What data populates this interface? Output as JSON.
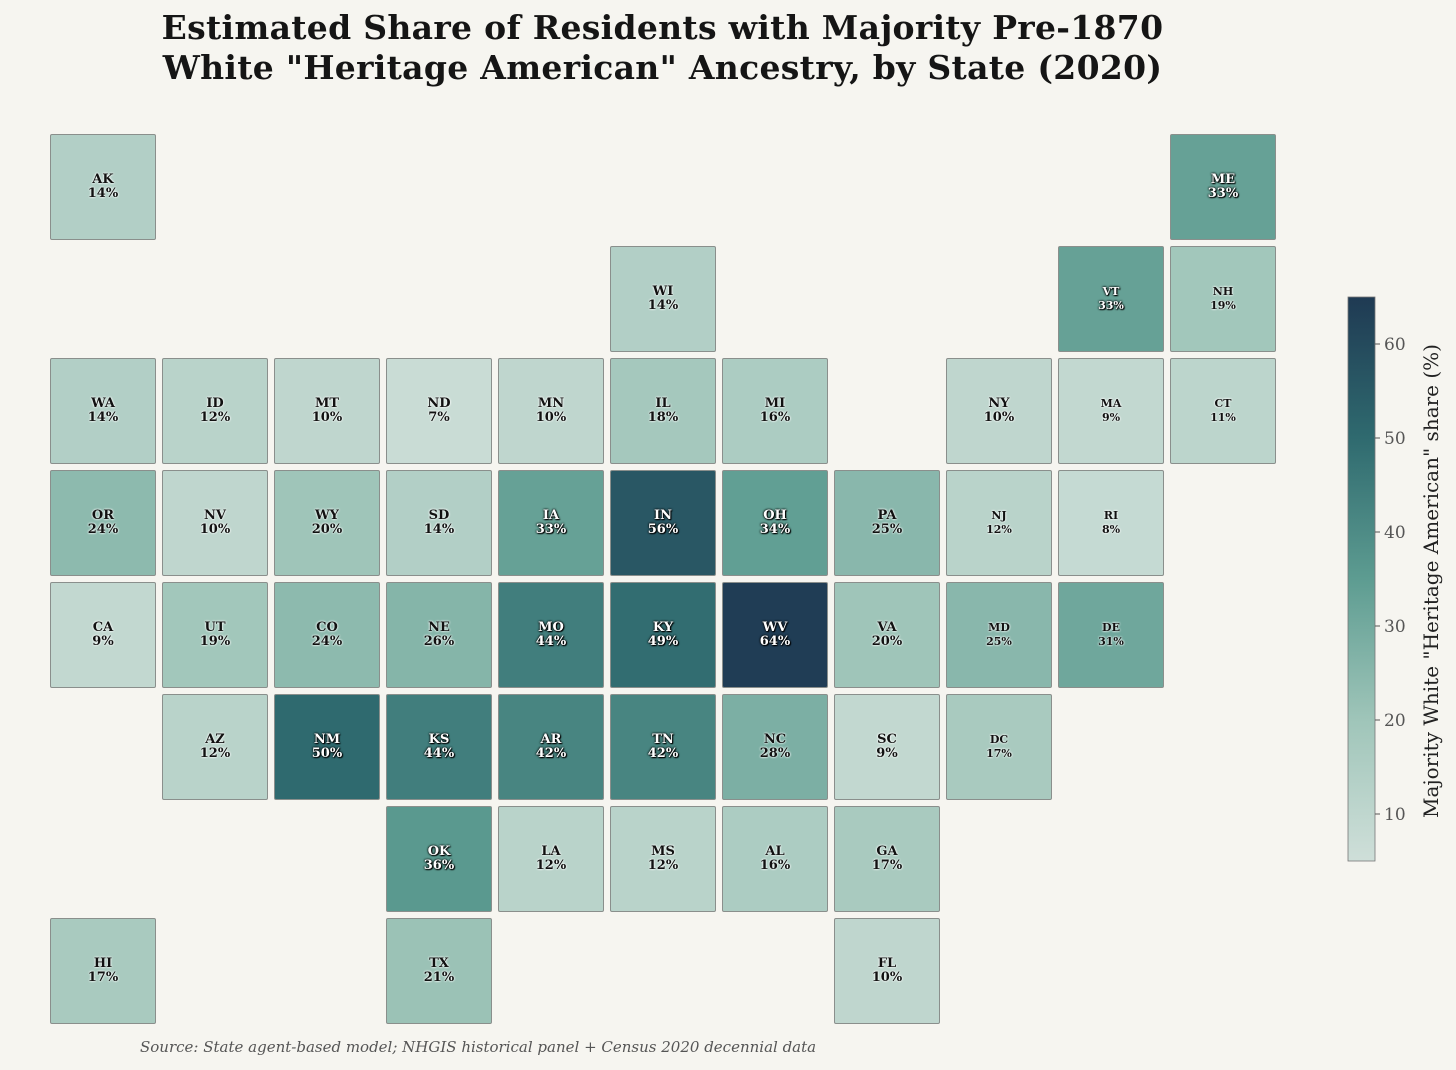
{
  "title_lines": [
    "Estimated Share of Residents with Majority Pre-1870",
    "White \"Heritage American\" Ancestry, by State (2020)"
  ],
  "source": "Source: State agent-based model; NHGIS historical panel + Census 2020 decennial data",
  "colorbar": {
    "label": "Majority White \"Heritage American\" share (%)",
    "min": 5,
    "max": 65,
    "ticks": [
      "10",
      "20",
      "30",
      "40",
      "50",
      "60"
    ],
    "tick_values": [
      10,
      20,
      30,
      40,
      50,
      60
    ],
    "colors": [
      "#cfdfd9",
      "#9fc5b9",
      "#5d9c91",
      "#2f6a6f",
      "#1f3a53"
    ]
  },
  "states": [
    {
      "abbr": "AK",
      "label": "14%",
      "value": 14,
      "col": 0,
      "row": 0
    },
    {
      "abbr": "ME",
      "label": "33%",
      "value": 33,
      "col": 10,
      "row": 0
    },
    {
      "abbr": "WI",
      "label": "14%",
      "value": 14,
      "col": 5,
      "row": 1
    },
    {
      "abbr": "VT",
      "label": "33%",
      "value": 33,
      "col": 9,
      "row": 1
    },
    {
      "abbr": "NH",
      "label": "19%",
      "value": 19,
      "col": 10,
      "row": 1
    },
    {
      "abbr": "WA",
      "label": "14%",
      "value": 14,
      "col": 0,
      "row": 2
    },
    {
      "abbr": "ID",
      "label": "12%",
      "value": 12,
      "col": 1,
      "row": 2
    },
    {
      "abbr": "MT",
      "label": "10%",
      "value": 10,
      "col": 2,
      "row": 2
    },
    {
      "abbr": "ND",
      "label": "7%",
      "value": 7,
      "col": 3,
      "row": 2
    },
    {
      "abbr": "MN",
      "label": "10%",
      "value": 10,
      "col": 4,
      "row": 2
    },
    {
      "abbr": "IL",
      "label": "18%",
      "value": 18,
      "col": 5,
      "row": 2
    },
    {
      "abbr": "MI",
      "label": "16%",
      "value": 16,
      "col": 6,
      "row": 2
    },
    {
      "abbr": "NY",
      "label": "10%",
      "value": 10,
      "col": 8,
      "row": 2
    },
    {
      "abbr": "MA",
      "label": "9%",
      "value": 9,
      "col": 9,
      "row": 2
    },
    {
      "abbr": "CT",
      "label": "11%",
      "value": 11,
      "col": 10,
      "row": 2
    },
    {
      "abbr": "OR",
      "label": "24%",
      "value": 24,
      "col": 0,
      "row": 3
    },
    {
      "abbr": "NV",
      "label": "10%",
      "value": 10,
      "col": 1,
      "row": 3
    },
    {
      "abbr": "WY",
      "label": "20%",
      "value": 20,
      "col": 2,
      "row": 3
    },
    {
      "abbr": "SD",
      "label": "14%",
      "value": 14,
      "col": 3,
      "row": 3
    },
    {
      "abbr": "IA",
      "label": "33%",
      "value": 33,
      "col": 4,
      "row": 3
    },
    {
      "abbr": "IN",
      "label": "56%",
      "value": 56,
      "col": 5,
      "row": 3
    },
    {
      "abbr": "OH",
      "label": "34%",
      "value": 34,
      "col": 6,
      "row": 3
    },
    {
      "abbr": "PA",
      "label": "25%",
      "value": 25,
      "col": 7,
      "row": 3
    },
    {
      "abbr": "NJ",
      "label": "12%",
      "value": 12,
      "col": 8,
      "row": 3
    },
    {
      "abbr": "RI",
      "label": "8%",
      "value": 8,
      "col": 9,
      "row": 3
    },
    {
      "abbr": "CA",
      "label": "9%",
      "value": 9,
      "col": 0,
      "row": 4
    },
    {
      "abbr": "UT",
      "label": "19%",
      "value": 19,
      "col": 1,
      "row": 4
    },
    {
      "abbr": "CO",
      "label": "24%",
      "value": 24,
      "col": 2,
      "row": 4
    },
    {
      "abbr": "NE",
      "label": "26%",
      "value": 26,
      "col": 3,
      "row": 4
    },
    {
      "abbr": "MO",
      "label": "44%",
      "value": 44,
      "col": 4,
      "row": 4
    },
    {
      "abbr": "KY",
      "label": "49%",
      "value": 49,
      "col": 5,
      "row": 4
    },
    {
      "abbr": "WV",
      "label": "64%",
      "value": 64,
      "col": 6,
      "row": 4
    },
    {
      "abbr": "VA",
      "label": "20%",
      "value": 20,
      "col": 7,
      "row": 4
    },
    {
      "abbr": "MD",
      "label": "25%",
      "value": 25,
      "col": 8,
      "row": 4
    },
    {
      "abbr": "DE",
      "label": "31%",
      "value": 31,
      "col": 9,
      "row": 4
    },
    {
      "abbr": "AZ",
      "label": "12%",
      "value": 12,
      "col": 1,
      "row": 5
    },
    {
      "abbr": "NM",
      "label": "50%",
      "value": 50,
      "col": 2,
      "row": 5
    },
    {
      "abbr": "KS",
      "label": "44%",
      "value": 44,
      "col": 3,
      "row": 5
    },
    {
      "abbr": "AR",
      "label": "42%",
      "value": 42,
      "col": 4,
      "row": 5
    },
    {
      "abbr": "TN",
      "label": "42%",
      "value": 42,
      "col": 5,
      "row": 5
    },
    {
      "abbr": "NC",
      "label": "28%",
      "value": 28,
      "col": 6,
      "row": 5
    },
    {
      "abbr": "SC",
      "label": "9%",
      "value": 9,
      "col": 7,
      "row": 5
    },
    {
      "abbr": "DC",
      "label": "17%",
      "value": 17,
      "col": 8,
      "row": 5
    },
    {
      "abbr": "OK",
      "label": "36%",
      "value": 36,
      "col": 3,
      "row": 6
    },
    {
      "abbr": "LA",
      "label": "12%",
      "value": 12,
      "col": 4,
      "row": 6
    },
    {
      "abbr": "MS",
      "label": "12%",
      "value": 12,
      "col": 5,
      "row": 6
    },
    {
      "abbr": "AL",
      "label": "16%",
      "value": 16,
      "col": 6,
      "row": 6
    },
    {
      "abbr": "GA",
      "label": "17%",
      "value": 17,
      "col": 7,
      "row": 6
    },
    {
      "abbr": "HI",
      "label": "17%",
      "value": 17,
      "col": 0,
      "row": 7
    },
    {
      "abbr": "TX",
      "label": "21%",
      "value": 21,
      "col": 3,
      "row": 7
    },
    {
      "abbr": "FL",
      "label": "10%",
      "value": 10,
      "col": 7,
      "row": 7
    }
  ]
}
